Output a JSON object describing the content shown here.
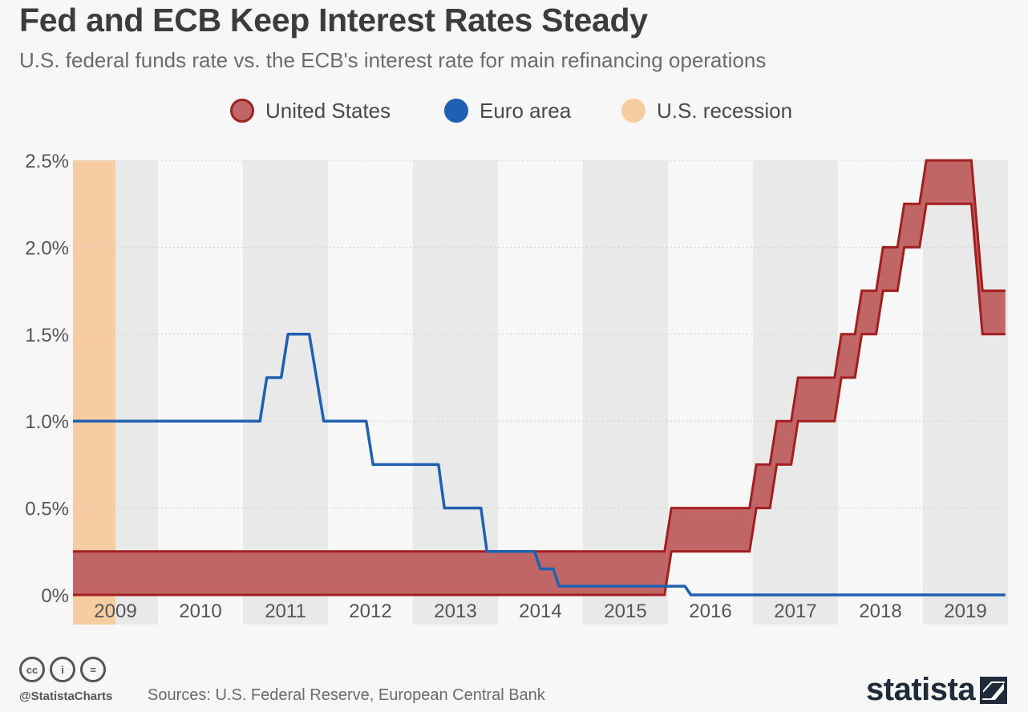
{
  "header": {
    "title": "Fed and ECB Keep Interest Rates Steady",
    "subtitle": "U.S. federal funds rate vs. the ECB's interest rate for main refinancing operations"
  },
  "legend": {
    "items": [
      {
        "label": "United States",
        "color": "#c06666",
        "border": "#a31f1f",
        "icon": "circle"
      },
      {
        "label": "Euro area",
        "color": "#2060b0",
        "border": "#2060b0",
        "icon": "circle"
      },
      {
        "label": "U.S. recession",
        "color": "#f6cda0",
        "border": "#f6cda0",
        "icon": "circle"
      }
    ]
  },
  "footer": {
    "license_icons": [
      "cc-icon",
      "by-icon",
      "nd-icon"
    ],
    "license_glyphs": [
      "cc",
      "i",
      "="
    ],
    "handle": "@StatistaCharts",
    "sources": "Sources: U.S. Federal Reserve, European Central Bank",
    "logo": "statista"
  },
  "chart_data": {
    "type": "area",
    "title": "Fed and ECB Keep Interest Rates Steady",
    "subtitle": "U.S. federal funds rate vs. the ECB's interest rate for main refinancing operations",
    "xlabel": "",
    "ylabel": "",
    "x_tick_labels": [
      "2009",
      "2010",
      "2011",
      "2012",
      "2013",
      "2014",
      "2015",
      "2016",
      "2017",
      "2018",
      "2019"
    ],
    "y_tick_labels": [
      "0%",
      "0.5%",
      "1.0%",
      "1.5%",
      "2.0%",
      "2.5%"
    ],
    "y_ticks": [
      0,
      0.5,
      1.0,
      1.5,
      2.0,
      2.5
    ],
    "xlim": [
      2009.0,
      2020.0
    ],
    "ylim": [
      0,
      2.5
    ],
    "grid": true,
    "alternating_year_bands": true,
    "legend_position": "top-center",
    "recession": {
      "name": "U.S. recession",
      "start": 2009.0,
      "end": 2009.5,
      "color": "#f6cda0"
    },
    "series": [
      {
        "name": "United States",
        "kind": "band",
        "fill": "#c06666",
        "stroke": "#a31f1f",
        "upper": [
          [
            2009.0,
            0.25
          ],
          [
            2015.96,
            0.25
          ],
          [
            2016.04,
            0.5
          ],
          [
            2016.96,
            0.5
          ],
          [
            2017.04,
            0.75
          ],
          [
            2017.2,
            0.75
          ],
          [
            2017.28,
            1.0
          ],
          [
            2017.45,
            1.0
          ],
          [
            2017.53,
            1.25
          ],
          [
            2017.96,
            1.25
          ],
          [
            2018.04,
            1.5
          ],
          [
            2018.2,
            1.5
          ],
          [
            2018.28,
            1.75
          ],
          [
            2018.45,
            1.75
          ],
          [
            2018.53,
            2.0
          ],
          [
            2018.7,
            2.0
          ],
          [
            2018.78,
            2.25
          ],
          [
            2018.96,
            2.25
          ],
          [
            2019.04,
            2.5
          ],
          [
            2019.57,
            2.5
          ],
          [
            2019.7,
            1.75
          ],
          [
            2019.97,
            1.75
          ]
        ],
        "lower": [
          [
            2009.0,
            0.0
          ],
          [
            2015.96,
            0.0
          ],
          [
            2016.04,
            0.25
          ],
          [
            2016.96,
            0.25
          ],
          [
            2017.04,
            0.5
          ],
          [
            2017.2,
            0.5
          ],
          [
            2017.28,
            0.75
          ],
          [
            2017.45,
            0.75
          ],
          [
            2017.53,
            1.0
          ],
          [
            2017.96,
            1.0
          ],
          [
            2018.04,
            1.25
          ],
          [
            2018.2,
            1.25
          ],
          [
            2018.28,
            1.5
          ],
          [
            2018.45,
            1.5
          ],
          [
            2018.53,
            1.75
          ],
          [
            2018.7,
            1.75
          ],
          [
            2018.78,
            2.0
          ],
          [
            2018.96,
            2.0
          ],
          [
            2019.04,
            2.25
          ],
          [
            2019.57,
            2.25
          ],
          [
            2019.7,
            1.5
          ],
          [
            2019.97,
            1.5
          ]
        ]
      },
      {
        "name": "Euro area",
        "kind": "line",
        "stroke": "#2060b0",
        "values": [
          [
            2009.0,
            1.0
          ],
          [
            2011.2,
            1.0
          ],
          [
            2011.28,
            1.25
          ],
          [
            2011.45,
            1.25
          ],
          [
            2011.53,
            1.5
          ],
          [
            2011.78,
            1.5
          ],
          [
            2011.95,
            1.0
          ],
          [
            2012.45,
            1.0
          ],
          [
            2012.53,
            0.75
          ],
          [
            2013.3,
            0.75
          ],
          [
            2013.37,
            0.5
          ],
          [
            2013.8,
            0.5
          ],
          [
            2013.87,
            0.25
          ],
          [
            2014.43,
            0.25
          ],
          [
            2014.5,
            0.15
          ],
          [
            2014.65,
            0.15
          ],
          [
            2014.72,
            0.05
          ],
          [
            2016.2,
            0.05
          ],
          [
            2016.27,
            0.0
          ],
          [
            2019.97,
            0.0
          ]
        ]
      }
    ]
  }
}
